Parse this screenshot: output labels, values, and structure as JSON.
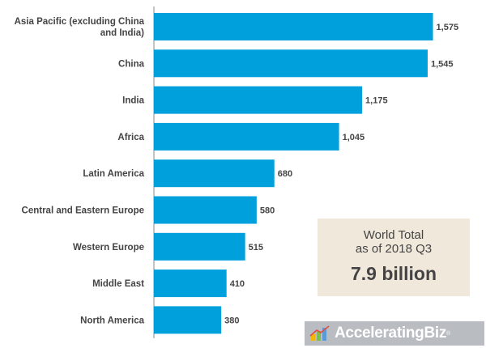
{
  "chart_data": {
    "type": "bar",
    "orientation": "horizontal",
    "categories": [
      "Asia Pacific (excluding China and India)",
      "China",
      "India",
      "Africa",
      "Latin America",
      "Central and Eastern Europe",
      "Western Europe",
      "Middle East",
      "North America"
    ],
    "category_lines": [
      [
        "Asia Pacific (excluding China",
        "and India)"
      ],
      [
        "China"
      ],
      [
        "India"
      ],
      [
        "Africa"
      ],
      [
        "Latin America"
      ],
      [
        "Central and Eastern Europe"
      ],
      [
        "Western Europe"
      ],
      [
        "Middle East"
      ],
      [
        "North America"
      ]
    ],
    "values": [
      1575,
      1545,
      1175,
      1045,
      680,
      580,
      515,
      410,
      380
    ],
    "value_labels": [
      "1,575",
      "1,545",
      "1,175",
      "1,045",
      "680",
      "580",
      "515",
      "410",
      "380"
    ],
    "xlim": [
      0,
      1600
    ],
    "grid": false,
    "bar_color": "#00a0dc",
    "title": "",
    "xlabel": "",
    "ylabel": ""
  },
  "info_box": {
    "line1": "World Total",
    "line2": "as of 2018 Q3",
    "value": "7.9 billion"
  },
  "logo": {
    "text": "AcceleratingBiz",
    "mark": "®"
  }
}
